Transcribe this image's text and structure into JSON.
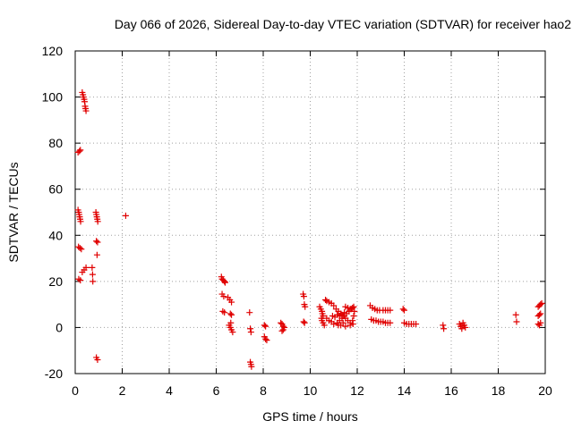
{
  "chart_data": {
    "type": "scatter",
    "title": "Day 066 of 2026, Sidereal Day-to-day VTEC variation (SDTVAR) for receiver hao2",
    "xlabel": "GPS time / hours",
    "ylabel": "SDTVAR / TECUs",
    "xlim": [
      0,
      20
    ],
    "ylim": [
      -20,
      120
    ],
    "x_ticks": [
      0,
      2,
      4,
      6,
      8,
      10,
      12,
      14,
      16,
      18,
      20
    ],
    "y_ticks": [
      -20,
      0,
      20,
      40,
      60,
      80,
      100,
      120
    ],
    "grid": true,
    "marker": "+",
    "series": [
      {
        "name": "SDTVAR",
        "color": "#e00000",
        "points": [
          [
            0.12,
            76
          ],
          [
            0.18,
            76.5
          ],
          [
            0.22,
            77
          ],
          [
            0.3,
            102
          ],
          [
            0.33,
            101
          ],
          [
            0.35,
            100
          ],
          [
            0.38,
            99
          ],
          [
            0.4,
            98
          ],
          [
            0.42,
            96
          ],
          [
            0.44,
            95
          ],
          [
            0.46,
            94
          ],
          [
            0.12,
            51
          ],
          [
            0.15,
            50
          ],
          [
            0.17,
            49
          ],
          [
            0.19,
            48
          ],
          [
            0.21,
            47
          ],
          [
            0.23,
            46
          ],
          [
            0.14,
            35
          ],
          [
            0.2,
            34.5
          ],
          [
            0.26,
            34
          ],
          [
            0.15,
            21
          ],
          [
            0.22,
            20.5
          ],
          [
            0.3,
            24
          ],
          [
            0.38,
            25
          ],
          [
            0.46,
            26
          ],
          [
            0.72,
            26
          ],
          [
            0.74,
            23
          ],
          [
            0.75,
            20
          ],
          [
            0.88,
            50
          ],
          [
            0.9,
            49
          ],
          [
            0.92,
            48
          ],
          [
            0.94,
            47
          ],
          [
            0.96,
            46
          ],
          [
            0.9,
            37.5
          ],
          [
            0.95,
            37
          ],
          [
            0.93,
            31.5
          ],
          [
            0.9,
            -13
          ],
          [
            0.95,
            -14
          ],
          [
            2.15,
            48.5
          ],
          [
            6.22,
            22
          ],
          [
            6.25,
            21
          ],
          [
            6.3,
            20.5
          ],
          [
            6.35,
            20
          ],
          [
            6.38,
            19.5
          ],
          [
            6.25,
            14.5
          ],
          [
            6.32,
            13.5
          ],
          [
            6.5,
            13
          ],
          [
            6.58,
            12
          ],
          [
            6.65,
            11
          ],
          [
            6.28,
            7
          ],
          [
            6.35,
            6.5
          ],
          [
            6.6,
            6
          ],
          [
            6.65,
            5.5
          ],
          [
            6.55,
            1
          ],
          [
            6.6,
            0
          ],
          [
            6.65,
            -1
          ],
          [
            6.7,
            -2
          ],
          [
            6.62,
            2
          ],
          [
            7.42,
            6.5
          ],
          [
            7.45,
            -0.5
          ],
          [
            7.48,
            -2
          ],
          [
            7.45,
            -15
          ],
          [
            7.48,
            -16
          ],
          [
            7.5,
            -17
          ],
          [
            8.05,
            1
          ],
          [
            8.1,
            0.5
          ],
          [
            8.05,
            -4
          ],
          [
            8.1,
            -5
          ],
          [
            8.15,
            -5.5
          ],
          [
            8.75,
            2
          ],
          [
            8.8,
            1.5
          ],
          [
            8.85,
            0.5
          ],
          [
            8.9,
            0
          ],
          [
            8.8,
            -1.5
          ],
          [
            8.85,
            -1
          ],
          [
            9.7,
            14.5
          ],
          [
            9.73,
            13.5
          ],
          [
            9.75,
            10
          ],
          [
            9.78,
            9
          ],
          [
            9.72,
            2.5
          ],
          [
            9.76,
            2
          ],
          [
            10.4,
            9
          ],
          [
            10.45,
            8
          ],
          [
            10.5,
            7
          ],
          [
            10.52,
            6
          ],
          [
            10.55,
            5
          ],
          [
            10.48,
            4
          ],
          [
            10.5,
            3
          ],
          [
            10.55,
            2
          ],
          [
            10.6,
            1
          ],
          [
            10.65,
            12
          ],
          [
            10.7,
            11.5
          ],
          [
            10.8,
            11
          ],
          [
            10.9,
            10.5
          ],
          [
            11.0,
            9.5
          ],
          [
            10.7,
            4
          ],
          [
            10.8,
            3
          ],
          [
            10.9,
            2.5
          ],
          [
            11.1,
            8
          ],
          [
            11.2,
            7
          ],
          [
            11.3,
            6
          ],
          [
            11.4,
            5
          ],
          [
            11.5,
            4
          ],
          [
            11.6,
            3
          ],
          [
            11.7,
            2
          ],
          [
            11.15,
            2
          ],
          [
            11.25,
            3
          ],
          [
            11.35,
            4
          ],
          [
            11.45,
            5
          ],
          [
            11.55,
            6
          ],
          [
            11.65,
            7
          ],
          [
            11.75,
            8
          ],
          [
            11.3,
            1
          ],
          [
            11.5,
            0.5
          ],
          [
            11.7,
            1
          ],
          [
            11.5,
            9
          ],
          [
            11.6,
            8.5
          ],
          [
            11.7,
            8
          ],
          [
            11.8,
            8.5
          ],
          [
            11.85,
            9
          ],
          [
            11.0,
            1.5
          ],
          [
            11.2,
            1
          ],
          [
            11.4,
            2
          ],
          [
            10.95,
            5
          ],
          [
            11.05,
            4.5
          ],
          [
            11.15,
            5.5
          ],
          [
            11.25,
            5
          ],
          [
            11.35,
            5.5
          ],
          [
            11.45,
            6.5
          ],
          [
            11.8,
            3
          ],
          [
            11.85,
            5
          ],
          [
            11.88,
            7
          ],
          [
            11.82,
            1.5
          ],
          [
            12.55,
            9.5
          ],
          [
            12.65,
            8.5
          ],
          [
            12.75,
            8
          ],
          [
            12.85,
            7.5
          ],
          [
            12.95,
            7.5
          ],
          [
            12.6,
            3.5
          ],
          [
            12.7,
            3
          ],
          [
            12.8,
            3
          ],
          [
            12.9,
            2.5
          ],
          [
            13.0,
            2.5
          ],
          [
            13.1,
            7.5
          ],
          [
            13.2,
            7.5
          ],
          [
            13.3,
            7.5
          ],
          [
            13.4,
            7.5
          ],
          [
            13.1,
            2.5
          ],
          [
            13.2,
            2
          ],
          [
            13.3,
            2
          ],
          [
            13.4,
            2
          ],
          [
            13.95,
            8
          ],
          [
            14.0,
            7.5
          ],
          [
            14.0,
            2
          ],
          [
            14.1,
            1.5
          ],
          [
            14.2,
            1.5
          ],
          [
            14.3,
            1.5
          ],
          [
            14.4,
            1.5
          ],
          [
            14.5,
            1.5
          ],
          [
            15.65,
            1
          ],
          [
            15.68,
            -0.5
          ],
          [
            16.35,
            1.5
          ],
          [
            16.4,
            0.5
          ],
          [
            16.45,
            -0.5
          ],
          [
            16.5,
            2
          ],
          [
            16.55,
            1
          ],
          [
            16.6,
            0
          ],
          [
            18.75,
            5.5
          ],
          [
            18.78,
            2.5
          ],
          [
            19.7,
            9
          ],
          [
            19.75,
            9.5
          ],
          [
            19.8,
            10
          ],
          [
            19.85,
            10.5
          ],
          [
            19.7,
            5
          ],
          [
            19.75,
            5.5
          ],
          [
            19.8,
            6
          ],
          [
            19.7,
            1.5
          ],
          [
            19.75,
            1
          ],
          [
            19.8,
            2
          ]
        ]
      }
    ]
  }
}
